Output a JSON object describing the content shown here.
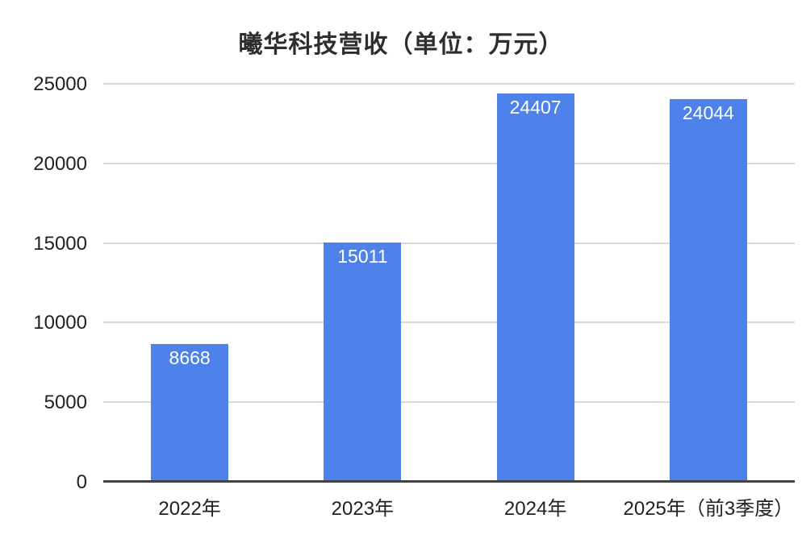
{
  "chart_data": {
    "type": "bar",
    "title": "曦华科技营收（单位：万元）",
    "categories": [
      "2022年",
      "2023年",
      "2024年",
      "2025年（前3季度）"
    ],
    "values": [
      8668,
      15011,
      24407,
      24044
    ],
    "value_labels": [
      "8668",
      "15011",
      "24407",
      "24044"
    ],
    "yticks": [
      0,
      5000,
      10000,
      15000,
      20000,
      25000
    ],
    "ytick_labels": [
      "0",
      "5000",
      "10000",
      "15000",
      "20000",
      "25000"
    ],
    "ylim": [
      0,
      25000
    ],
    "xlabel": "",
    "ylabel": "",
    "grid": "horizontal",
    "legend": "none",
    "bar_color": "#4f81ea",
    "value_label_color": "#ffffff",
    "axis_text_color": "#212121",
    "gridline_color": "#d9d9d9",
    "axis_line_color": "#424242"
  }
}
